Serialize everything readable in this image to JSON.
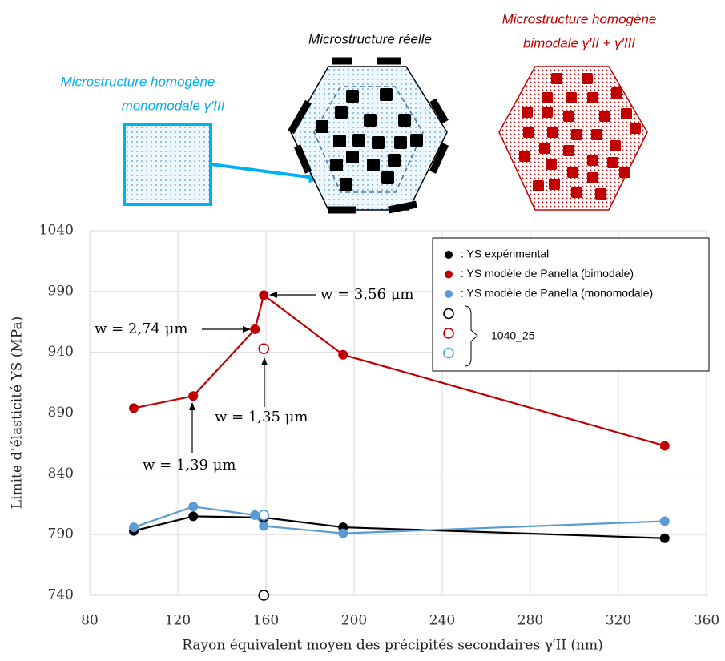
{
  "illustrations": {
    "monomodal": [
      "Microstructure homogène",
      "monomodale γ′III"
    ],
    "real": [
      "Microstructure réelle"
    ],
    "bimodal": [
      "Microstructure homogène",
      "bimodale γ′II + γ′III"
    ]
  },
  "chart_data": {
    "type": "line",
    "x_label": "Rayon équivalent moyen des précipités secondaires γ′II (nm)",
    "y_label": "Limite d’élasticité YS (MPa)",
    "xlim": [
      80,
      360
    ],
    "xticks": [
      80,
      120,
      160,
      200,
      240,
      280,
      320,
      360
    ],
    "ylim": [
      740,
      1040
    ],
    "yticks": [
      740,
      790,
      840,
      890,
      940,
      990,
      1040
    ],
    "grid": true,
    "legend": "top-right",
    "legend_group_label": "1040_25",
    "series": [
      {
        "name": ": YS expérimental",
        "color": "#000000",
        "marker": "filled",
        "x": [
          100,
          127,
          159,
          195,
          341
        ],
        "values": [
          793,
          805,
          804,
          796,
          787
        ]
      },
      {
        "name": ": YS modèle de Panella (bimodale)",
        "color": "#c00000",
        "marker": "filled",
        "x": [
          100,
          127,
          155,
          159,
          195,
          341
        ],
        "values": [
          894,
          904,
          959,
          987,
          938,
          863
        ]
      },
      {
        "name": ": YS modèle de Panella (monomodale)",
        "color": "#5b9bd5",
        "marker": "filled",
        "x": [
          100,
          127,
          155,
          159,
          195,
          341
        ],
        "values": [
          796,
          813,
          806,
          797,
          791,
          801
        ]
      },
      {
        "color": "#000000",
        "marker": "open",
        "x": [
          159
        ],
        "values": [
          740
        ]
      },
      {
        "color": "#c00000",
        "marker": "open",
        "x": [
          159
        ],
        "values": [
          943
        ]
      },
      {
        "color": "#5b9bd5",
        "marker": "open",
        "x": [
          159
        ],
        "values": [
          806
        ]
      }
    ],
    "annotations": [
      "w = 3,56 μm",
      "w = 2,74 μm",
      "w = 1,35 μm",
      "w = 1,39 μm"
    ]
  }
}
